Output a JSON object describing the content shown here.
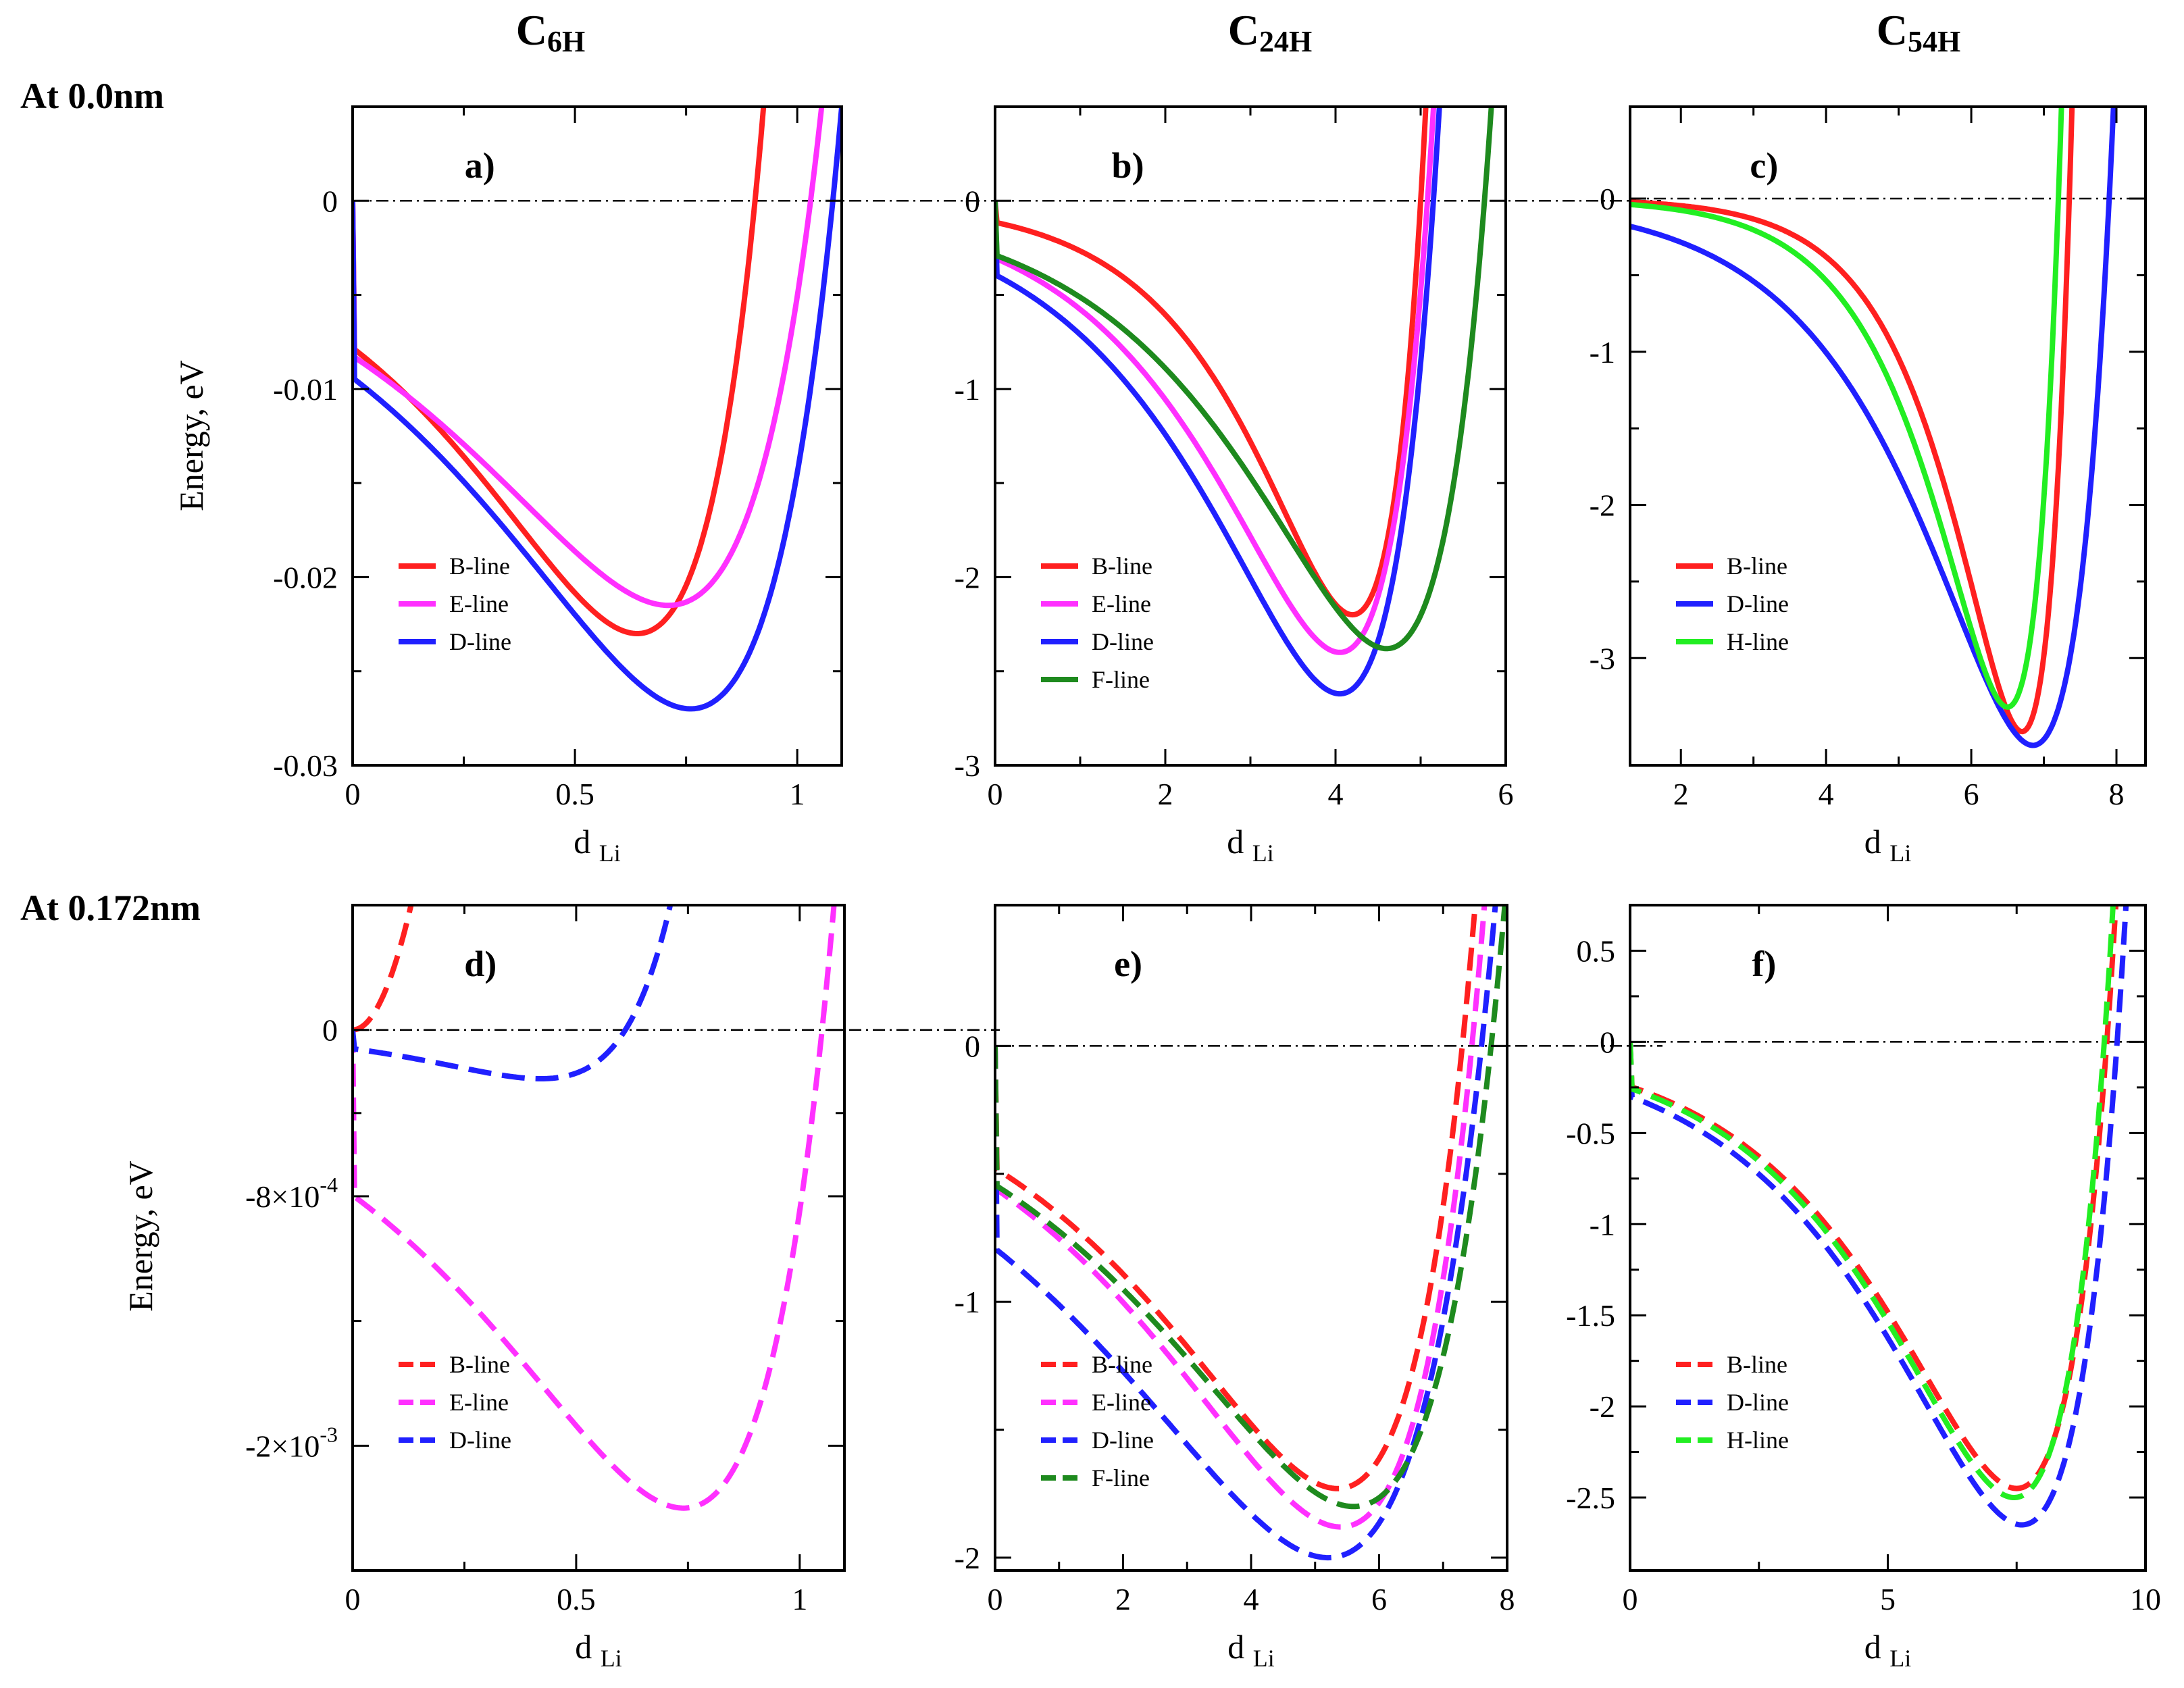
{
  "figure": {
    "column_titles": [
      {
        "main": "C",
        "sub": "6H"
      },
      {
        "main": "C",
        "sub": "24H"
      },
      {
        "main": "C",
        "sub": "54H"
      }
    ],
    "row_titles": [
      "At 0.0nm",
      "At 0.172nm"
    ]
  },
  "colors": {
    "B-line": "#ff2020",
    "E-line": "#ff30ff",
    "D-line": "#2020ff",
    "F-line": "#1e8a1e",
    "H-line": "#22ee22"
  },
  "chart_data": [
    {
      "id": "a",
      "panel_label": "a)",
      "type": "line",
      "line_style": "solid",
      "xlabel": {
        "main": "d",
        "sub": "Li"
      },
      "ylabel": "Energy, eV",
      "xlim": [
        0,
        1.1
      ],
      "ylim": [
        -0.03,
        0.005
      ],
      "xticks": [
        0,
        0.5,
        1
      ],
      "xtick_labels": [
        "0",
        "0.5",
        "1"
      ],
      "yticks": [
        -0.03,
        -0.02,
        -0.01,
        0
      ],
      "ytick_labels": [
        "-0.03",
        "-0.02",
        "-0.01",
        "0"
      ],
      "zero_line": true,
      "series": [
        {
          "name": "B-line",
          "legend": "B-line",
          "min_x": 0.64,
          "min_y": -0.023,
          "cross_x": 0.905
        },
        {
          "name": "E-line",
          "legend": "E-line",
          "min_x": 0.71,
          "min_y": -0.0215,
          "cross_x": 1.03
        },
        {
          "name": "D-line",
          "legend": "D-line",
          "min_x": 0.76,
          "min_y": -0.027,
          "cross_x": 1.08
        }
      ]
    },
    {
      "id": "b",
      "panel_label": "b)",
      "type": "line",
      "line_style": "solid",
      "xlabel": {
        "main": "d",
        "sub": "Li"
      },
      "ylabel": "",
      "xlim": [
        0,
        6
      ],
      "ylim": [
        -3,
        0.5
      ],
      "xticks": [
        0,
        2,
        4,
        6
      ],
      "xtick_labels": [
        "0",
        "2",
        "4",
        "6"
      ],
      "yticks": [
        -3,
        -2,
        -1,
        0
      ],
      "ytick_labels": [
        "-3",
        "-2",
        "-1",
        "0"
      ],
      "zero_line": true,
      "series": [
        {
          "name": "B-line",
          "legend": "B-line",
          "min_x": 4.2,
          "min_y": -2.2,
          "cross_x": 5.0
        },
        {
          "name": "E-line",
          "legend": "E-line",
          "min_x": 4.05,
          "min_y": -2.4,
          "cross_x": 5.08
        },
        {
          "name": "D-line",
          "legend": "D-line",
          "min_x": 4.05,
          "min_y": -2.62,
          "cross_x": 5.15
        },
        {
          "name": "F-line",
          "legend": "F-line",
          "min_x": 4.6,
          "min_y": -2.38,
          "cross_x": 5.75
        }
      ]
    },
    {
      "id": "c",
      "panel_label": "c)",
      "type": "line",
      "line_style": "solid",
      "xlabel": {
        "main": "d",
        "sub": "Li"
      },
      "ylabel": "",
      "xlim": [
        1.3,
        8.4
      ],
      "ylim": [
        -3.7,
        0.6
      ],
      "xticks": [
        2,
        4,
        6,
        8
      ],
      "xtick_labels": [
        "2",
        "4",
        "6",
        "8"
      ],
      "yticks": [
        -3,
        -2,
        -1,
        0
      ],
      "ytick_labels": [
        "-3",
        "-2",
        "-1",
        "0"
      ],
      "zero_line": true,
      "series": [
        {
          "name": "B-line",
          "legend": "B-line",
          "min_x": 6.7,
          "min_y": -3.48,
          "cross_x": 7.35
        },
        {
          "name": "D-line",
          "legend": "D-line",
          "min_x": 6.85,
          "min_y": -3.57,
          "cross_x": 7.9
        },
        {
          "name": "H-line",
          "legend": "H-line",
          "min_x": 6.5,
          "min_y": -3.32,
          "cross_x": 7.2
        }
      ]
    },
    {
      "id": "d",
      "panel_label": "d)",
      "type": "line",
      "line_style": "dashed",
      "xlabel": {
        "main": "d",
        "sub": "Li"
      },
      "ylabel": "Energy, eV",
      "xlim": [
        0,
        1.1
      ],
      "ylim": [
        -0.0026,
        0.0006
      ],
      "xticks": [
        0,
        0.5,
        1
      ],
      "xtick_labels": [
        "0",
        "0.5",
        "1"
      ],
      "yticks": [
        -0.002,
        -0.0008,
        0
      ],
      "ytick_labels": [
        {
          "mantissa": "-2×10",
          "exp": "-3"
        },
        {
          "mantissa": "-8×10",
          "exp": "-4"
        },
        {
          "mantissa": "0",
          "exp": ""
        }
      ],
      "zero_line": true,
      "series": [
        {
          "name": "B-line",
          "legend": "B-line",
          "min_x": 0.0,
          "min_y": 0.0,
          "cross_x": 0.0
        },
        {
          "name": "E-line",
          "legend": "E-line",
          "min_x": 0.74,
          "min_y": -0.0023,
          "cross_x": 1.05
        },
        {
          "name": "D-line",
          "legend": "D-line",
          "min_x": 0.42,
          "min_y": -0.000235,
          "cross_x": 0.61
        }
      ]
    },
    {
      "id": "e",
      "panel_label": "e)",
      "type": "line",
      "line_style": "dashed",
      "xlabel": {
        "main": "d",
        "sub": "Li"
      },
      "ylabel": "",
      "xlim": [
        0,
        8
      ],
      "ylim": [
        -2.05,
        0.55
      ],
      "xticks": [
        0,
        2,
        4,
        6,
        8
      ],
      "xtick_labels": [
        "0",
        "2",
        "4",
        "6",
        "8"
      ],
      "yticks": [
        -2,
        -1,
        0
      ],
      "ytick_labels": [
        "-2",
        "-1",
        "0"
      ],
      "zero_line": true,
      "series": [
        {
          "name": "B-line",
          "legend": "B-line",
          "min_x": 5.35,
          "min_y": -1.73,
          "cross_x": 7.3
        },
        {
          "name": "E-line",
          "legend": "E-line",
          "min_x": 5.4,
          "min_y": -1.88,
          "cross_x": 7.45
        },
        {
          "name": "D-line",
          "legend": "D-line",
          "min_x": 5.2,
          "min_y": -2.0,
          "cross_x": 7.6
        },
        {
          "name": "F-line",
          "legend": "F-line",
          "min_x": 5.6,
          "min_y": -1.8,
          "cross_x": 7.75
        }
      ]
    },
    {
      "id": "f",
      "panel_label": "f)",
      "type": "line",
      "line_style": "dashed",
      "xlabel": {
        "main": "d",
        "sub": "Li"
      },
      "ylabel": "",
      "xlim": [
        0,
        10
      ],
      "ylim": [
        -2.9,
        0.75
      ],
      "xticks": [
        0,
        5,
        10
      ],
      "xtick_labels": [
        "0",
        "5",
        "10"
      ],
      "yticks": [
        -2.5,
        -2,
        -1.5,
        -1,
        -0.5,
        0,
        0.5
      ],
      "ytick_labels": [
        "-2.5",
        "-2",
        "-1.5",
        "-1",
        "-0.5",
        "0",
        "0.5"
      ],
      "zero_line": true,
      "series": [
        {
          "name": "B-line",
          "legend": "B-line",
          "min_x": 7.5,
          "min_y": -2.45,
          "cross_x": 9.25
        },
        {
          "name": "D-line",
          "legend": "D-line",
          "min_x": 7.6,
          "min_y": -2.65,
          "cross_x": 9.45
        },
        {
          "name": "H-line",
          "legend": "H-line",
          "min_x": 7.45,
          "min_y": -2.5,
          "cross_x": 9.2
        }
      ]
    }
  ]
}
